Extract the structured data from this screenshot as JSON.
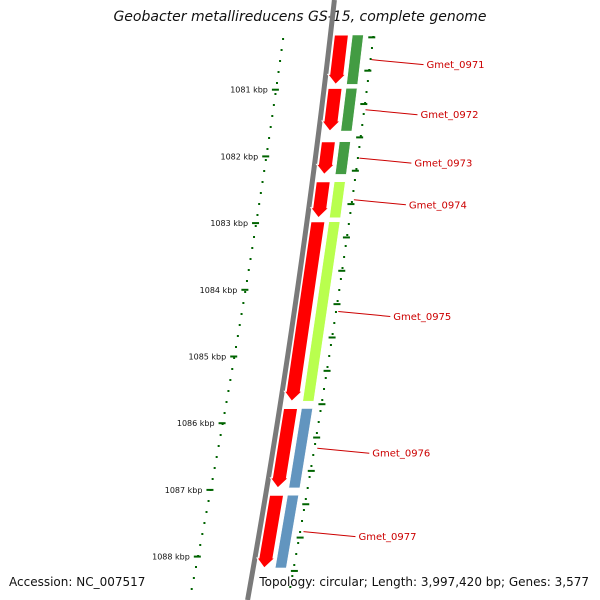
{
  "title": "Geobacter metallireducens GS-15, complete genome",
  "footer": {
    "accession": "Accession: NC_007517",
    "topology": "Topology: circular; Length: 3,997,420 bp; Genes: 3,577"
  },
  "scale": {
    "ticks": [
      {
        "position_kbp": 1081,
        "label": "1081 kbp"
      },
      {
        "position_kbp": 1082,
        "label": "1082 kbp"
      },
      {
        "position_kbp": 1083,
        "label": "1083 kbp"
      },
      {
        "position_kbp": 1084,
        "label": "1084 kbp"
      },
      {
        "position_kbp": 1085,
        "label": "1085 kbp"
      },
      {
        "position_kbp": 1086,
        "label": "1086 kbp"
      },
      {
        "position_kbp": 1087,
        "label": "1087 kbp"
      },
      {
        "position_kbp": 1088,
        "label": "1088 kbp"
      }
    ]
  },
  "genes": [
    {
      "name": "Gmet_0971",
      "start_kbp": 1080.15,
      "end_kbp": 1080.95,
      "cog_color": "#228b22"
    },
    {
      "name": "Gmet_0972",
      "start_kbp": 1080.95,
      "end_kbp": 1081.65,
      "cog_color": "#228b22"
    },
    {
      "name": "Gmet_0973",
      "start_kbp": 1081.75,
      "end_kbp": 1082.3,
      "cog_color": "#228b22"
    },
    {
      "name": "Gmet_0974",
      "start_kbp": 1082.35,
      "end_kbp": 1082.95,
      "cog_color": "#adff2f"
    },
    {
      "name": "Gmet_0975",
      "start_kbp": 1082.95,
      "end_kbp": 1085.7,
      "cog_color": "#adff2f"
    },
    {
      "name": "Gmet_0976",
      "start_kbp": 1085.75,
      "end_kbp": 1087.0,
      "cog_color": "#4682b4"
    },
    {
      "name": "Gmet_0977",
      "start_kbp": 1087.05,
      "end_kbp": 1088.2,
      "cog_color": "#4682b4"
    }
  ],
  "colors": {
    "cds_forward": "#ff0000",
    "backbone": "#808080",
    "tick": "#006400",
    "label": "#cc0000"
  }
}
